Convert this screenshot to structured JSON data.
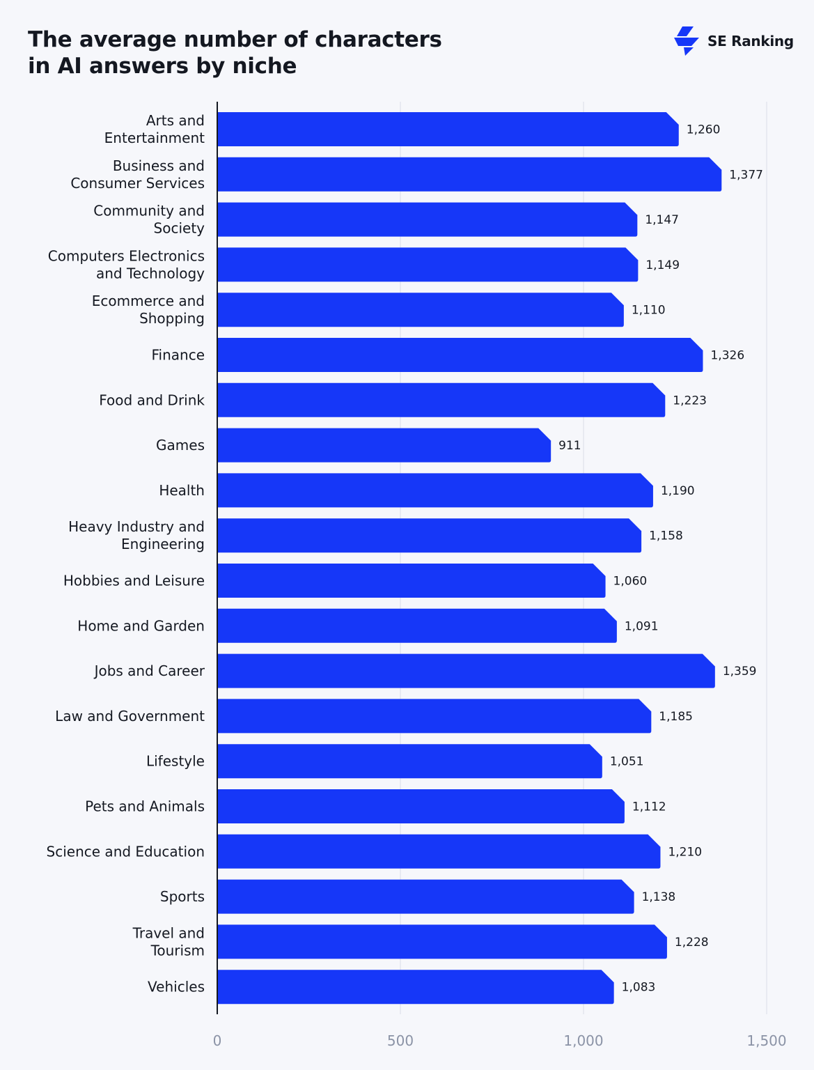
{
  "header": {
    "title_line1": "The average number of characters",
    "title_line2": "in AI answers by niche",
    "brand": "SE Ranking",
    "brand_icon": "se-ranking-logo-icon"
  },
  "colors": {
    "bar": "#1637f8",
    "background": "#f6f7fb",
    "text": "#141821",
    "tick_text": "#8b93a6",
    "grid": "#e3e6ee",
    "axis": "#141821"
  },
  "chart_data": {
    "type": "bar",
    "orientation": "horizontal",
    "title": "The average number of characters in AI answers by niche",
    "xlabel": "",
    "ylabel": "",
    "xlim": [
      0,
      1500
    ],
    "xticks": [
      0,
      500,
      1000,
      1500
    ],
    "xtick_labels": [
      "0",
      "500",
      "1,000",
      "1,500"
    ],
    "grid": true,
    "categories": [
      "Arts and Entertainment",
      "Business and Consumer Services",
      "Community and Society",
      "Computers Electronics and Technology",
      "Ecommerce and Shopping",
      "Finance",
      "Food and Drink",
      "Games",
      "Health",
      "Heavy Industry and Engineering",
      "Hobbies and Leisure",
      "Home and Garden",
      "Jobs and Career",
      "Law and Government",
      "Lifestyle",
      "Pets and Animals",
      "Science and Education",
      "Sports",
      "Travel and Tourism",
      "Vehicles"
    ],
    "category_label_lines": [
      [
        "Arts and",
        "Entertainment"
      ],
      [
        "Business and",
        "Consumer Services"
      ],
      [
        "Community and",
        "Society"
      ],
      [
        "Computers Electronics",
        "and Technology"
      ],
      [
        "Ecommerce and",
        "Shopping"
      ],
      [
        "Finance"
      ],
      [
        "Food and Drink"
      ],
      [
        "Games"
      ],
      [
        "Health"
      ],
      [
        "Heavy Industry and",
        "Engineering"
      ],
      [
        "Hobbies and Leisure"
      ],
      [
        "Home and Garden"
      ],
      [
        "Jobs and Career"
      ],
      [
        "Law and Government"
      ],
      [
        "Lifestyle"
      ],
      [
        "Pets and Animals"
      ],
      [
        "Science and Education"
      ],
      [
        "Sports"
      ],
      [
        "Travel and",
        "Tourism"
      ],
      [
        "Vehicles"
      ]
    ],
    "values": [
      1260,
      1377,
      1147,
      1149,
      1110,
      1326,
      1223,
      911,
      1190,
      1158,
      1060,
      1091,
      1359,
      1185,
      1051,
      1112,
      1210,
      1138,
      1228,
      1083
    ],
    "value_labels": [
      "1,260",
      "1,377",
      "1,147",
      "1,149",
      "1,110",
      "1,326",
      "1,223",
      "911",
      "1,190",
      "1,158",
      "1,060",
      "1,091",
      "1,359",
      "1,185",
      "1,051",
      "1,112",
      "1,210",
      "1,138",
      "1,228",
      "1,083"
    ]
  }
}
